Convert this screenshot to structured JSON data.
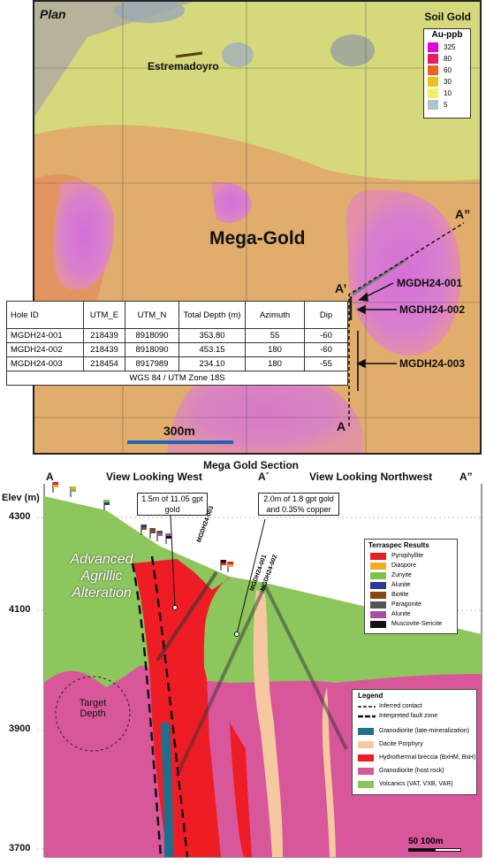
{
  "plan": {
    "title": "Plan",
    "soil_title": "Soil Gold",
    "au_legend": {
      "header": "Au-ppb",
      "items": [
        {
          "label": "325",
          "color": "#e000e0"
        },
        {
          "label": "80",
          "color": "#e02060"
        },
        {
          "label": "60",
          "color": "#f06020"
        },
        {
          "label": "30",
          "color": "#f0c020"
        },
        {
          "label": "10",
          "color": "#f0f060"
        },
        {
          "label": "5",
          "color": "#b0c0cc"
        }
      ]
    },
    "place_name": "Estremadoyro",
    "project_name": "Mega-Gold",
    "scale_label": "300m",
    "section_points": {
      "a": "A",
      "a_prime": "A’",
      "a_dprime": "A”"
    },
    "holes": [
      "MGDH24-001",
      "MGDH24-002",
      "MGDH24-003"
    ],
    "table": {
      "headers": [
        "Hole ID",
        "UTM_E",
        "UTM_N",
        "Total Depth (m)",
        "Azimuth",
        "Dip"
      ],
      "rows": [
        [
          "MGDH24-001",
          "218439",
          "8918090",
          "353.80",
          "55",
          "-60"
        ],
        [
          "MGDH24-002",
          "218439",
          "8918090",
          "453.15",
          "180",
          "-60"
        ],
        [
          "MGDH24-003",
          "218454",
          "8917989",
          "234.10",
          "180",
          "-55"
        ]
      ],
      "footer": "WGS 84 / UTM Zone 18S"
    }
  },
  "section": {
    "title": "Mega Gold Section",
    "view_west": "View Looking West",
    "view_nw": "View Looking Northwest",
    "a": "A",
    "a_prime": "A´",
    "a_dprime": "A”",
    "elev_label": "Elev (m)",
    "elevations": [
      "4300",
      "4100",
      "3900",
      "3700"
    ],
    "alteration_label": "Advanced Agrillic Alteration",
    "target_label": "Target Depth",
    "callout_1": "1.5m of 11.05 gpt gold",
    "callout_2": "2.0m of 1.8 gpt gold and 0.35% copper",
    "hole_labels": [
      "MGDH24-003",
      "MGDH24-001",
      "MGDH24-002"
    ],
    "scale_label": "50 100m",
    "terraspec": {
      "title": "Terraspec Results",
      "items": [
        {
          "label": "Pyrophyllite",
          "color": "#e31e24"
        },
        {
          "label": "Diaspore",
          "color": "#f7a823"
        },
        {
          "label": "Zunyite",
          "color": "#7dc242"
        },
        {
          "label": "Alunite",
          "color": "#2b3990"
        },
        {
          "label": "Biotite",
          "color": "#8b4513"
        },
        {
          "label": "Paragonite",
          "color": "#555555"
        },
        {
          "label": "Alunite",
          "color": "#a94fa3"
        },
        {
          "label": "Muscovite-Sericite",
          "color": "#111111"
        }
      ]
    },
    "legend": {
      "title": "Legend",
      "lines": [
        "Inferred contact",
        "Interpreted fault zone"
      ],
      "units": [
        {
          "label": "Granodiorite (late-mineralization)",
          "color": "#1f6e8c"
        },
        {
          "label": "Dacite Porphyry",
          "color": "#f5c8a0"
        },
        {
          "label": "Hydrothermal breccia (BxHM, BxH)",
          "color": "#ee1c25"
        },
        {
          "label": "Granodiorite (host rock)",
          "color": "#d8579a"
        },
        {
          "label": "Volcanics (VAT, VXB, VAR)",
          "color": "#8cc65c"
        }
      ]
    }
  }
}
